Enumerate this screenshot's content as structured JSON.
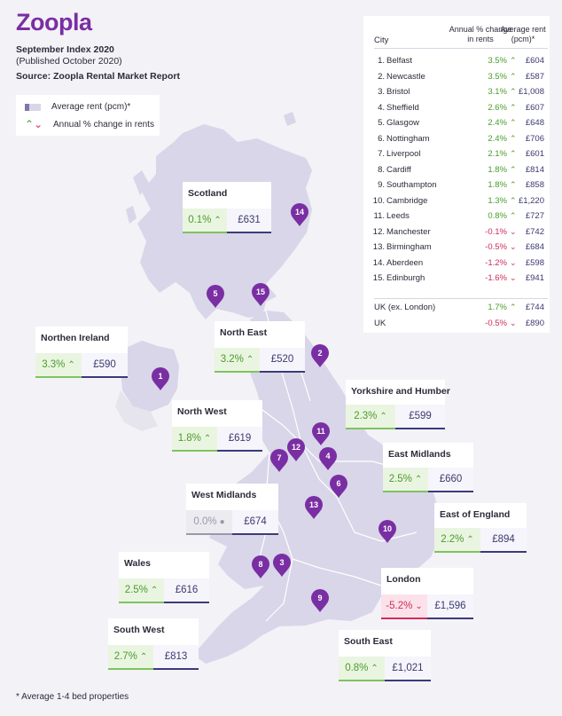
{
  "brand": {
    "logo": "Zoopla",
    "accent": "#7a2ea3"
  },
  "header": {
    "title": "September Index 2020",
    "subtitle": "(Published October 2020)",
    "source": "Source: Zoopla Rental Market Report"
  },
  "legend": {
    "rent_label": "Average rent (pcm)*",
    "change_label": "Annual % change in rents"
  },
  "footnote": "* Average 1-4 bed properties",
  "colors": {
    "up": "#4a9c2a",
    "down": "#cc2d5a",
    "flat": "#9a98a8",
    "rent": "#3c3970",
    "land": "#d8d6e8",
    "pin": "#7a2ea3"
  },
  "chart_data": {
    "type": "table",
    "regions": [
      {
        "name": "Scotland",
        "change": "0.1%",
        "direction": "up",
        "rent": "£631"
      },
      {
        "name": "Northen Ireland",
        "change": "3.3%",
        "direction": "up",
        "rent": "£590"
      },
      {
        "name": "North East",
        "change": "3.2%",
        "direction": "up",
        "rent": "£520"
      },
      {
        "name": "Yorkshire and Humber",
        "change": "2.3%",
        "direction": "up",
        "rent": "£599"
      },
      {
        "name": "North West",
        "change": "1.8%",
        "direction": "up",
        "rent": "£619"
      },
      {
        "name": "East Midlands",
        "change": "2.5%",
        "direction": "up",
        "rent": "£660"
      },
      {
        "name": "West Midlands",
        "change": "0.0%",
        "direction": "flat",
        "rent": "£674"
      },
      {
        "name": "East of England",
        "change": "2.2%",
        "direction": "up",
        "rent": "£894"
      },
      {
        "name": "Wales",
        "change": "2.5%",
        "direction": "up",
        "rent": "£616"
      },
      {
        "name": "London",
        "change": "-5.2%",
        "direction": "down",
        "rent": "£1,596"
      },
      {
        "name": "South West",
        "change": "2.7%",
        "direction": "up",
        "rent": "£813"
      },
      {
        "name": "South East",
        "change": "0.8%",
        "direction": "up",
        "rent": "£1,021"
      }
    ],
    "table": {
      "headers": {
        "city": "City",
        "change": "Annual % change in rents",
        "rent": "Average rent (pcm)*"
      },
      "rows": [
        {
          "rank": "1.",
          "city": "Belfast",
          "change": "3.5%",
          "direction": "up",
          "rent": "£604"
        },
        {
          "rank": "2.",
          "city": "Newcastle",
          "change": "3.5%",
          "direction": "up",
          "rent": "£587"
        },
        {
          "rank": "3.",
          "city": "Bristol",
          "change": "3.1%",
          "direction": "up",
          "rent": "£1,008"
        },
        {
          "rank": "4.",
          "city": "Sheffield",
          "change": "2.6%",
          "direction": "up",
          "rent": "£607"
        },
        {
          "rank": "5.",
          "city": "Glasgow",
          "change": "2.4%",
          "direction": "up",
          "rent": "£648"
        },
        {
          "rank": "6.",
          "city": "Nottingham",
          "change": "2.4%",
          "direction": "up",
          "rent": "£706"
        },
        {
          "rank": "7.",
          "city": "Liverpool",
          "change": "2.1%",
          "direction": "up",
          "rent": "£601"
        },
        {
          "rank": "8.",
          "city": "Cardiff",
          "change": "1.8%",
          "direction": "up",
          "rent": "£814"
        },
        {
          "rank": "9.",
          "city": "Southampton",
          "change": "1.8%",
          "direction": "up",
          "rent": "£858"
        },
        {
          "rank": "10.",
          "city": "Cambridge",
          "change": "1.3%",
          "direction": "up",
          "rent": "£1,220"
        },
        {
          "rank": "11.",
          "city": "Leeds",
          "change": "0.8%",
          "direction": "up",
          "rent": "£727"
        },
        {
          "rank": "12.",
          "city": "Manchester",
          "change": "-0.1%",
          "direction": "down",
          "rent": "£742"
        },
        {
          "rank": "13.",
          "city": "Birmingham",
          "change": "-0.5%",
          "direction": "down",
          "rent": "£684"
        },
        {
          "rank": "14.",
          "city": "Aberdeen",
          "change": "-1.2%",
          "direction": "down",
          "rent": "£598"
        },
        {
          "rank": "15.",
          "city": "Edinburgh",
          "change": "-1.6%",
          "direction": "down",
          "rent": "£941"
        }
      ],
      "totals": [
        {
          "city": "UK (ex. London)",
          "change": "1.7%",
          "direction": "up",
          "rent": "£744"
        },
        {
          "city": "UK",
          "change": "-0.5%",
          "direction": "down",
          "rent": "£890"
        }
      ]
    },
    "city_pins": [
      "1",
      "2",
      "3",
      "4",
      "5",
      "6",
      "7",
      "8",
      "9",
      "10",
      "11",
      "12",
      "13",
      "14",
      "15"
    ]
  }
}
